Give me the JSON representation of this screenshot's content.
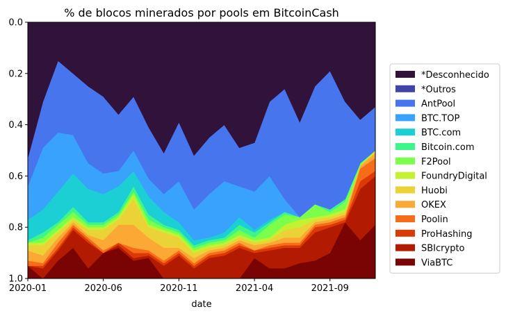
{
  "chart_data": {
    "type": "area",
    "title": "% de blocos minerados por pools em BitcoinCash",
    "xlabel": "date",
    "ylabel": "",
    "ylim": [
      0,
      1
    ],
    "y_inverted": true,
    "y_ticks": [
      "0.0",
      "0.2",
      "0.4",
      "0.6",
      "0.8",
      "1.0"
    ],
    "x_tick_labels": [
      {
        "label": "2020-01",
        "index": 0
      },
      {
        "label": "2020-06",
        "index": 5
      },
      {
        "label": "2020-11",
        "index": 10
      },
      {
        "label": "2021-04",
        "index": 15
      },
      {
        "label": "2021-09",
        "index": 20
      }
    ],
    "x": [
      "2020-01",
      "2020-02",
      "2020-03",
      "2020-04",
      "2020-05",
      "2020-06",
      "2020-07",
      "2020-08",
      "2020-09",
      "2020-10",
      "2020-11",
      "2020-12",
      "2021-01",
      "2021-02",
      "2021-03",
      "2021-04",
      "2021-05",
      "2021-06",
      "2021-07",
      "2021-08",
      "2021-09",
      "2021-10",
      "2021-11",
      "2021-12"
    ],
    "boundaries_order_from_bottom": [
      "ViaBTC",
      "SBIcrypto",
      "ProHashing",
      "Poolin",
      "OKEX",
      "Huobi",
      "FoundryDigital",
      "F2Pool",
      "Bitcoin.com",
      "BTC.com",
      "BTC.TOP",
      "AntPool",
      "*Outros",
      "*Desconhecido"
    ],
    "cumulative_top_boundary": {
      "ViaBTC": [
        0.95,
        1.0,
        0.93,
        0.88,
        0.96,
        0.9,
        0.88,
        0.93,
        0.92,
        1.0,
        1.0,
        1.0,
        1.0,
        1.0,
        1.0,
        0.92,
        0.96,
        0.96,
        0.94,
        0.93,
        0.9,
        0.78,
        0.85,
        0.79
      ],
      "SBIcrypto": [
        0.95,
        0.96,
        0.89,
        0.81,
        0.86,
        0.9,
        0.87,
        0.92,
        0.91,
        0.95,
        0.91,
        0.96,
        0.92,
        0.91,
        0.88,
        0.9,
        0.89,
        0.88,
        0.88,
        0.82,
        0.8,
        0.78,
        0.65,
        0.6
      ],
      "ProHashing": [
        0.95,
        0.95,
        0.88,
        0.8,
        0.85,
        0.9,
        0.86,
        0.9,
        0.9,
        0.94,
        0.9,
        0.95,
        0.91,
        0.9,
        0.87,
        0.89,
        0.88,
        0.87,
        0.87,
        0.8,
        0.79,
        0.77,
        0.62,
        0.58
      ],
      "Poolin": [
        0.93,
        0.94,
        0.86,
        0.79,
        0.84,
        0.89,
        0.86,
        0.88,
        0.89,
        0.93,
        0.89,
        0.94,
        0.9,
        0.89,
        0.86,
        0.89,
        0.87,
        0.86,
        0.86,
        0.79,
        0.78,
        0.76,
        0.57,
        0.53
      ],
      "OKEX": [
        0.89,
        0.91,
        0.84,
        0.78,
        0.83,
        0.85,
        0.79,
        0.79,
        0.84,
        0.88,
        0.88,
        0.92,
        0.89,
        0.88,
        0.85,
        0.87,
        0.86,
        0.84,
        0.84,
        0.78,
        0.77,
        0.75,
        0.56,
        0.51
      ],
      "Huobi": [
        0.87,
        0.87,
        0.82,
        0.77,
        0.81,
        0.81,
        0.77,
        0.69,
        0.8,
        0.82,
        0.84,
        0.9,
        0.88,
        0.87,
        0.84,
        0.86,
        0.85,
        0.81,
        0.8,
        0.77,
        0.76,
        0.74,
        0.56,
        0.5
      ],
      "FoundryDigital": [
        0.86,
        0.86,
        0.81,
        0.76,
        0.8,
        0.8,
        0.76,
        0.67,
        0.79,
        0.81,
        0.83,
        0.89,
        0.87,
        0.86,
        0.83,
        0.85,
        0.84,
        0.79,
        0.77,
        0.76,
        0.75,
        0.73,
        0.56,
        0.5
      ],
      "F2Pool": [
        0.86,
        0.84,
        0.79,
        0.74,
        0.79,
        0.79,
        0.75,
        0.66,
        0.77,
        0.8,
        0.82,
        0.88,
        0.86,
        0.85,
        0.81,
        0.84,
        0.79,
        0.75,
        0.76,
        0.71,
        0.74,
        0.7,
        0.55,
        0.5
      ],
      "Bitcoin.com": [
        0.85,
        0.82,
        0.78,
        0.72,
        0.78,
        0.78,
        0.74,
        0.64,
        0.75,
        0.79,
        0.81,
        0.87,
        0.85,
        0.84,
        0.79,
        0.82,
        0.78,
        0.74,
        0.76,
        0.71,
        0.73,
        0.69,
        0.55,
        0.5
      ],
      "BTC.com": [
        0.77,
        0.73,
        0.66,
        0.59,
        0.65,
        0.67,
        0.64,
        0.58,
        0.68,
        0.74,
        0.78,
        0.85,
        0.84,
        0.82,
        0.76,
        0.81,
        0.77,
        0.74,
        0.76,
        0.71,
        0.73,
        0.69,
        0.55,
        0.5
      ],
      "BTC.TOP": [
        0.64,
        0.49,
        0.43,
        0.44,
        0.55,
        0.59,
        0.58,
        0.5,
        0.61,
        0.67,
        0.62,
        0.73,
        0.67,
        0.62,
        0.64,
        0.66,
        0.6,
        0.69,
        0.76,
        0.71,
        0.73,
        0.69,
        0.55,
        0.5
      ],
      "AntPool": [
        0.53,
        0.31,
        0.15,
        0.2,
        0.25,
        0.29,
        0.36,
        0.29,
        0.41,
        0.51,
        0.39,
        0.52,
        0.45,
        0.4,
        0.49,
        0.47,
        0.31,
        0.26,
        0.39,
        0.25,
        0.19,
        0.31,
        0.38,
        0.33
      ],
      "*Outros": [
        0.53,
        0.31,
        0.15,
        0.2,
        0.25,
        0.29,
        0.36,
        0.29,
        0.41,
        0.51,
        0.39,
        0.52,
        0.45,
        0.4,
        0.49,
        0.47,
        0.31,
        0.26,
        0.39,
        0.25,
        0.19,
        0.31,
        0.38,
        0.33
      ],
      "*Desconhecido": [
        0,
        0,
        0,
        0,
        0,
        0,
        0,
        0,
        0,
        0,
        0,
        0,
        0,
        0,
        0,
        0,
        0,
        0,
        0,
        0,
        0,
        0,
        0,
        0
      ]
    },
    "legend": {
      "placement": "right",
      "entries": [
        {
          "name": "*Desconhecido",
          "color": "#30123b"
        },
        {
          "name": "*Outros",
          "color": "#4145ab"
        },
        {
          "name": "AntPool",
          "color": "#4675ed"
        },
        {
          "name": "BTC.TOP",
          "color": "#39a2fc"
        },
        {
          "name": "BTC.com",
          "color": "#1bcfd4"
        },
        {
          "name": "Bitcoin.com",
          "color": "#3ef58a"
        },
        {
          "name": "F2Pool",
          "color": "#7cff4b"
        },
        {
          "name": "FoundryDigital",
          "color": "#c4f133"
        },
        {
          "name": "Huobi",
          "color": "#ebd236"
        },
        {
          "name": "OKEX",
          "color": "#fca835"
        },
        {
          "name": "Poolin",
          "color": "#f66c19"
        },
        {
          "name": "ProHashing",
          "color": "#db3a07"
        },
        {
          "name": "SBIcrypto",
          "color": "#b21a01"
        },
        {
          "name": "ViaBTC",
          "color": "#7a0403"
        }
      ]
    }
  }
}
